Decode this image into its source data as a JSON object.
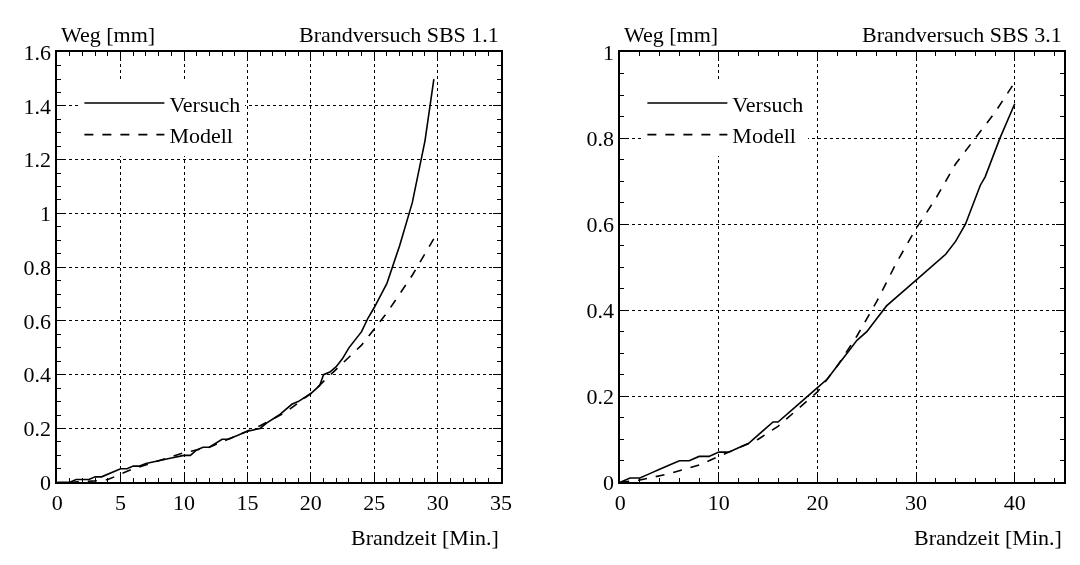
{
  "chart_data": [
    {
      "type": "line",
      "title": "Brandversuch SBS 1.1",
      "xlabel": "Brandzeit [Min.]",
      "ylabel": "Weg [mm]",
      "xlim": [
        0,
        35
      ],
      "xticks": [
        0,
        5,
        10,
        15,
        20,
        25,
        30,
        35
      ],
      "ylim": [
        0,
        1.6
      ],
      "yticks": [
        0,
        0.2,
        0.4,
        0.6,
        0.8,
        1,
        1.2,
        1.4,
        1.6
      ],
      "grid": true,
      "legend": "top left",
      "marker": "none",
      "series": [
        {
          "name": "Versuch",
          "color": "#000000",
          "line_style": "solid",
          "x": [
            0,
            1,
            1.5,
            2.5,
            3,
            3.5,
            5,
            5.5,
            6,
            6.5,
            7,
            8,
            9,
            10,
            10.5,
            11,
            11.5,
            12,
            13,
            13.5,
            15,
            16,
            16.5,
            17.5,
            18.5,
            19,
            20,
            20.7,
            21,
            21.5,
            22,
            22.5,
            23,
            24,
            24.5,
            25,
            26,
            27,
            28,
            29,
            29.7
          ],
          "values": [
            0,
            0,
            0.01,
            0.01,
            0.02,
            0.02,
            0.05,
            0.05,
            0.06,
            0.06,
            0.07,
            0.08,
            0.09,
            0.1,
            0.1,
            0.12,
            0.13,
            0.13,
            0.16,
            0.16,
            0.19,
            0.2,
            0.22,
            0.25,
            0.29,
            0.3,
            0.33,
            0.36,
            0.4,
            0.41,
            0.43,
            0.46,
            0.5,
            0.56,
            0.61,
            0.65,
            0.74,
            0.88,
            1.04,
            1.27,
            1.5
          ]
        },
        {
          "name": "Modell",
          "color": "#000000",
          "line_style": "dashed",
          "x": [
            1,
            3,
            4,
            5,
            6,
            8,
            10,
            12,
            14,
            16,
            18,
            20,
            22,
            24,
            26,
            28,
            30
          ],
          "values": [
            0,
            0.005,
            0.01,
            0.03,
            0.05,
            0.08,
            0.11,
            0.13,
            0.17,
            0.21,
            0.26,
            0.33,
            0.42,
            0.51,
            0.63,
            0.77,
            0.93
          ]
        }
      ]
    },
    {
      "type": "line",
      "title": "Brandversuch SBS 3.1",
      "xlabel": "Brandzeit [Min.]",
      "ylabel": "Weg [mm]",
      "xlim": [
        0,
        45
      ],
      "xticks": [
        0,
        10,
        20,
        30,
        40
      ],
      "ylim": [
        0,
        1
      ],
      "yticks": [
        0,
        0.2,
        0.4,
        0.6,
        0.8,
        1
      ],
      "grid": true,
      "legend": "top left",
      "marker": "none",
      "series": [
        {
          "name": "Versuch",
          "color": "#000000",
          "line_style": "solid",
          "x": [
            0,
            1,
            2,
            3,
            4,
            5,
            6,
            7,
            8,
            9,
            10,
            11,
            12,
            13,
            14,
            15.5,
            16,
            18,
            20,
            21,
            22,
            23,
            24,
            25,
            26,
            27,
            30,
            33,
            34,
            35,
            36.5,
            37,
            38.5,
            40
          ],
          "values": [
            0,
            0.01,
            0.01,
            0.02,
            0.03,
            0.04,
            0.05,
            0.05,
            0.06,
            0.06,
            0.07,
            0.07,
            0.08,
            0.09,
            0.11,
            0.14,
            0.14,
            0.18,
            0.22,
            0.24,
            0.27,
            0.3,
            0.33,
            0.35,
            0.38,
            0.41,
            0.47,
            0.53,
            0.56,
            0.6,
            0.69,
            0.71,
            0.8,
            0.88
          ]
        },
        {
          "name": "Modell",
          "color": "#000000",
          "line_style": "dashed",
          "x": [
            0,
            2,
            5,
            8,
            10,
            12,
            14,
            16,
            18,
            20,
            22,
            24,
            26,
            28,
            30,
            32,
            34,
            36,
            38,
            40
          ],
          "values": [
            0,
            0.005,
            0.02,
            0.04,
            0.06,
            0.08,
            0.1,
            0.13,
            0.17,
            0.21,
            0.27,
            0.34,
            0.42,
            0.51,
            0.59,
            0.66,
            0.74,
            0.8,
            0.86,
            0.93
          ]
        }
      ]
    }
  ]
}
